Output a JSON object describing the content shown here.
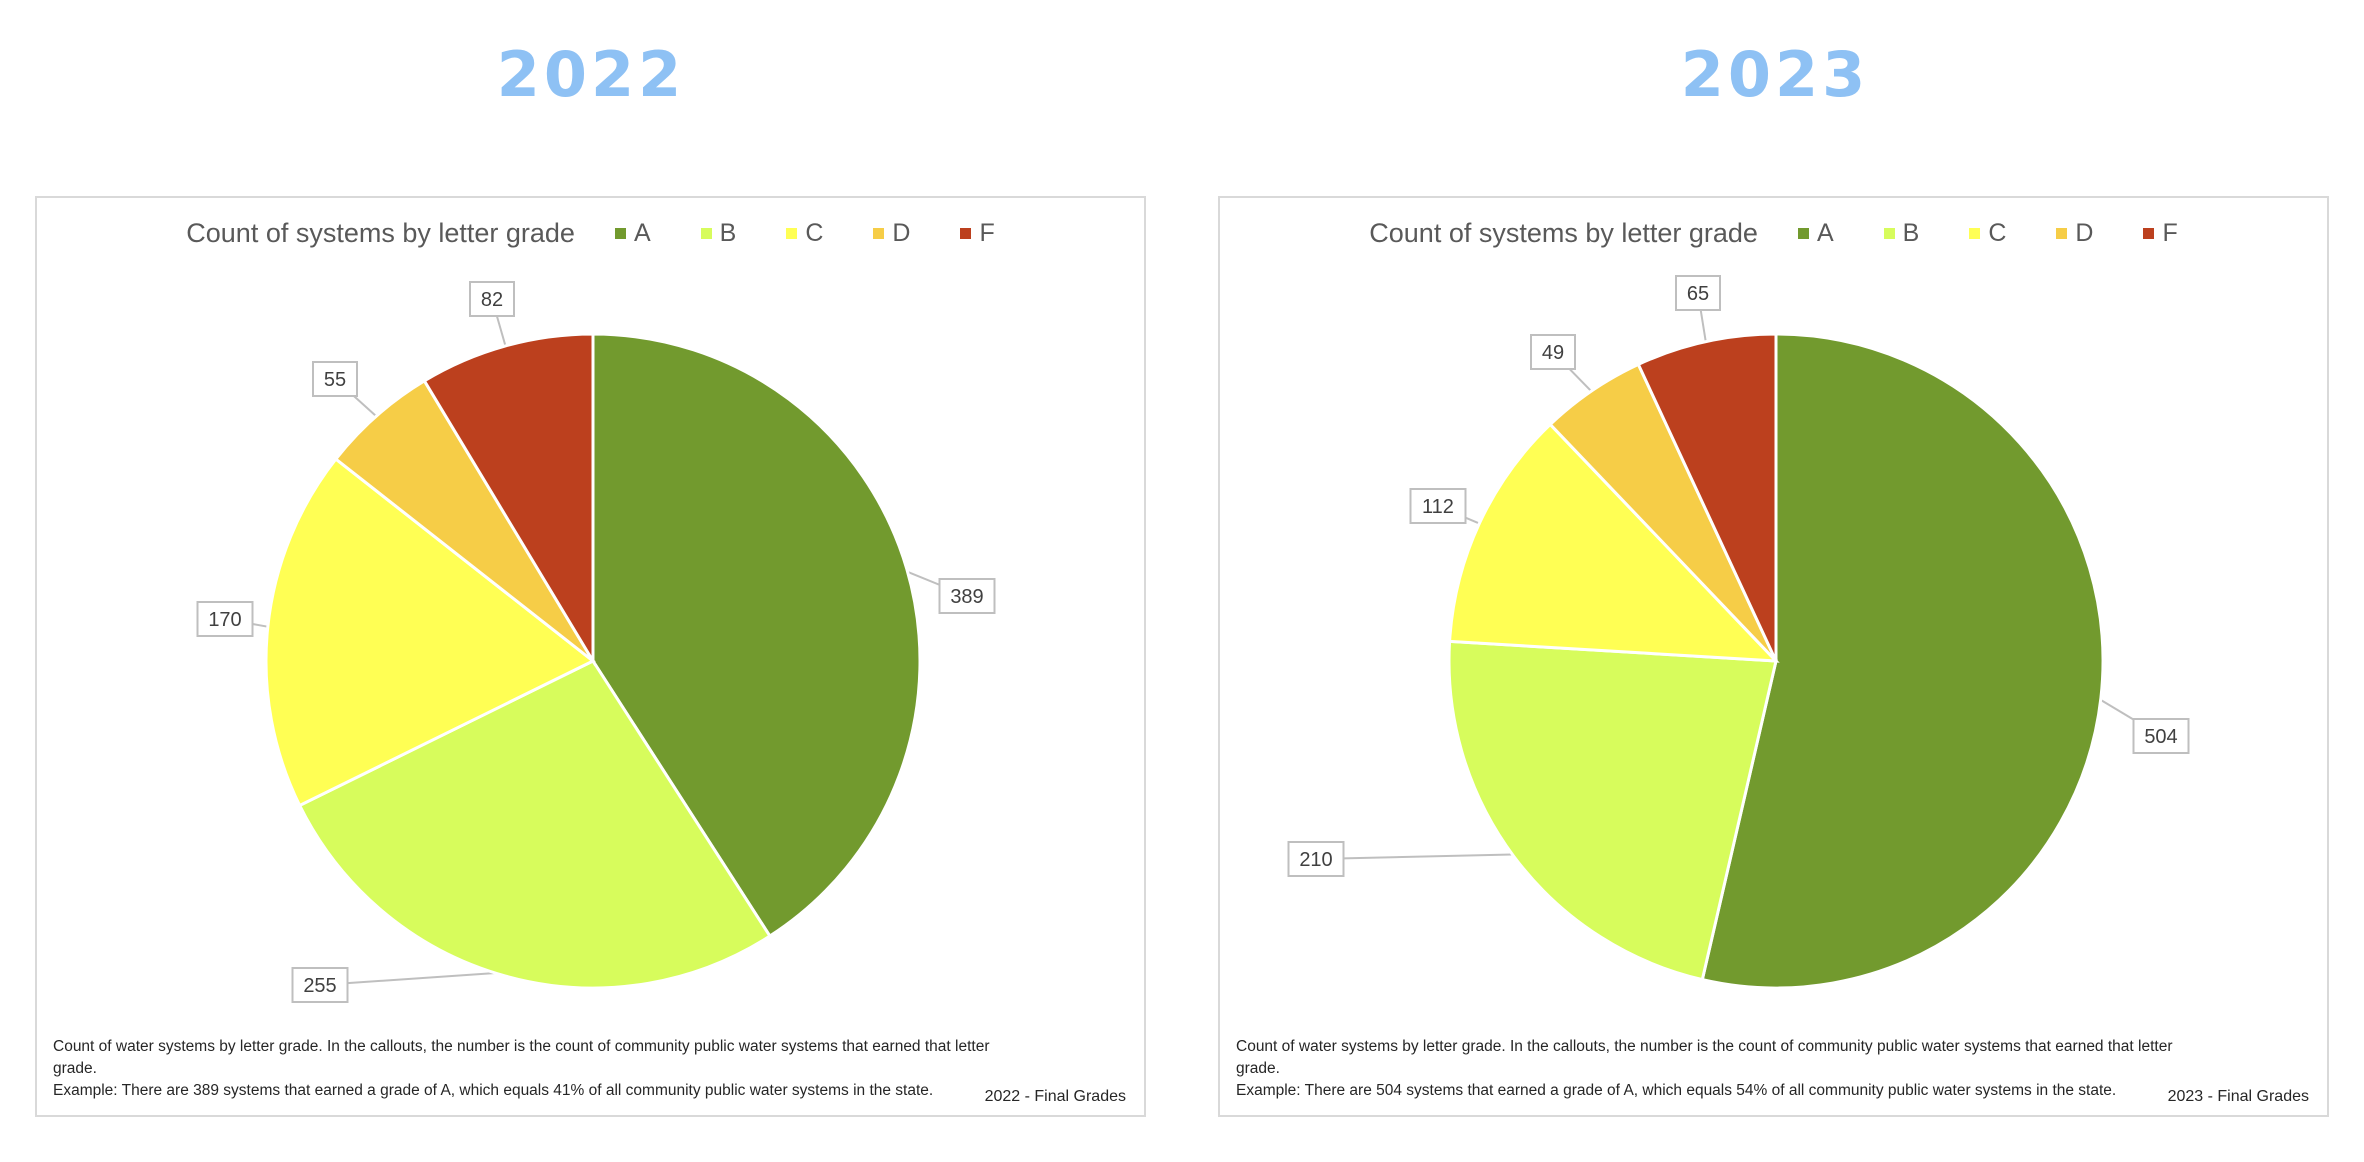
{
  "colors": {
    "A": "#729a2e",
    "B": "#d7fc5c",
    "C": "#ffff54",
    "D": "#f6cd47",
    "F": "#bc401e",
    "year_title": "#8ec1f4"
  },
  "chart_data": [
    {
      "type": "pie",
      "year": "2022",
      "title": "Count of systems by letter grade",
      "categories": [
        "A",
        "B",
        "C",
        "D",
        "F"
      ],
      "values": [
        389,
        255,
        170,
        55,
        82
      ],
      "legend_position": "top-right",
      "note_line1": "Count of water systems by letter grade. In the callouts, the number is the count of community public water systems that earned that letter grade.",
      "note_line2": "Example: There are 389 systems that earned a grade of A, which equals 41% of all community public water systems in the state.",
      "footer": "2022 - Final Grades"
    },
    {
      "type": "pie",
      "year": "2023",
      "title": "Count of systems by letter grade",
      "categories": [
        "A",
        "B",
        "C",
        "D",
        "F"
      ],
      "values": [
        504,
        210,
        112,
        49,
        65
      ],
      "legend_position": "top-right",
      "note_line1": "Count of water systems by letter grade. In the callouts, the number is the count of community public water systems that earned that letter grade.",
      "note_line2": "Example: There are 504 systems that earned a grade of A, which equals 54% of all community public water systems in the state.",
      "footer": "2023 - Final Grades"
    }
  ]
}
